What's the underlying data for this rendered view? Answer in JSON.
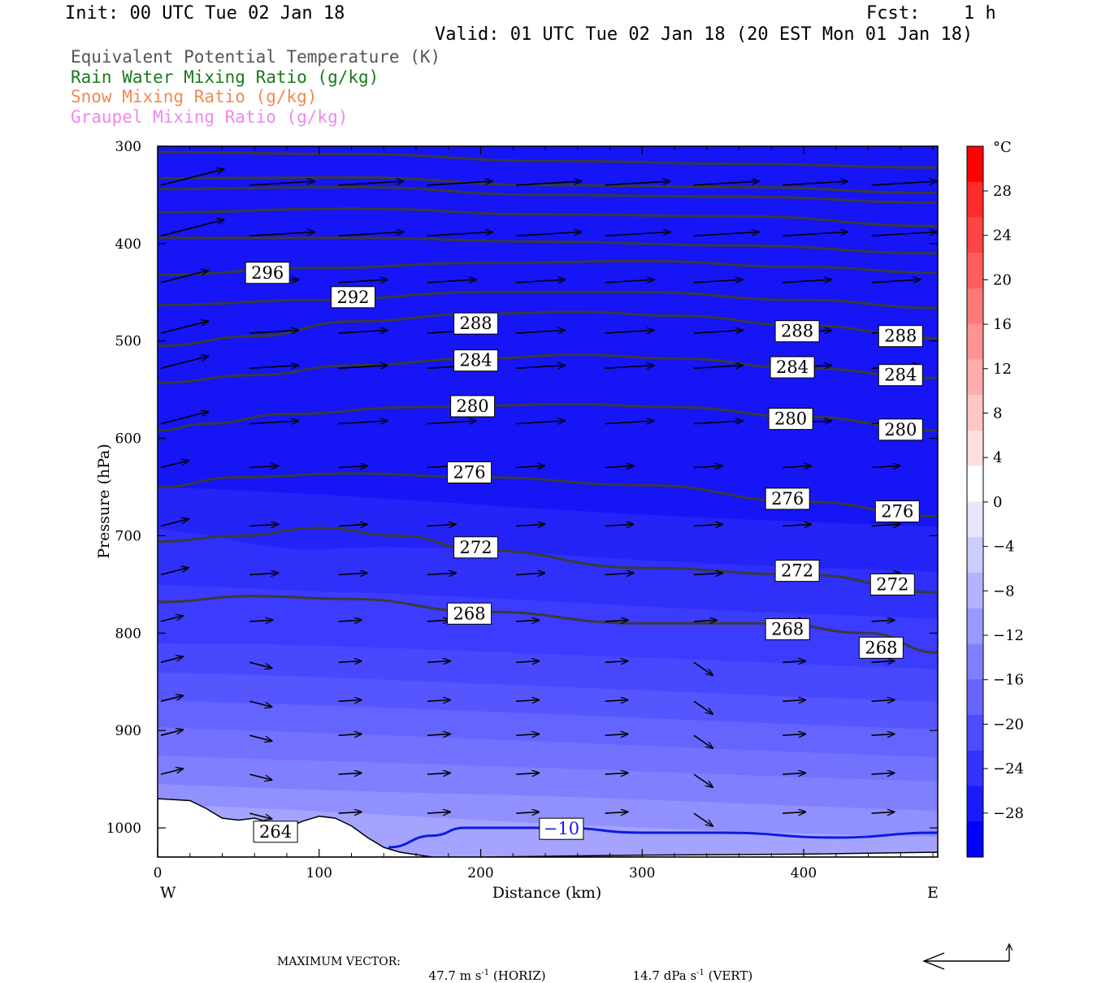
{
  "header": {
    "init": "Init: 00 UTC Tue 02 Jan 18",
    "fcst_label": "Fcst:",
    "fcst_value": "1 h",
    "valid": "Valid: 01 UTC Tue 02 Jan 18 (20 EST Mon 01 Jan 18)",
    "legend_lines": [
      {
        "text": "Equivalent Potential Temperature (K)",
        "color": "#555555"
      },
      {
        "text": "Rain Water Mixing Ratio (g/kg)",
        "color": "#1a7a1a"
      },
      {
        "text": "Snow Mixing Ratio (g/kg)",
        "color": "#f08a50"
      },
      {
        "text": "Graupel Mixing Ratio (g/kg)",
        "color": "#ee88ee"
      }
    ]
  },
  "colorbar": {
    "unit": "°C",
    "labels": [
      "28",
      "24",
      "20",
      "16",
      "12",
      "8",
      "4",
      "0",
      "−4",
      "−8",
      "−12",
      "−16",
      "−20",
      "−24",
      "−28"
    ],
    "colors": [
      "#ff0000",
      "#ff2a2a",
      "#ff4444",
      "#ff5e5e",
      "#ff7878",
      "#ff9292",
      "#ffacac",
      "#ffc6c6",
      "#ffe0e0",
      "#ffffff",
      "#e6e6ff",
      "#ccccff",
      "#b3b3ff",
      "#9999ff",
      "#8080ff",
      "#6666ff",
      "#4d4dff",
      "#3333ff",
      "#1a1aff",
      "#0000ff"
    ]
  },
  "footer": {
    "max_vector_label": "MAXIMUM VECTOR:",
    "horiz_value": "47.7 m s",
    "horiz_suffix": " (HORIZ)",
    "vert_value": "14.7 dPa s",
    "vert_suffix": " (VERT)",
    "exp": "-1"
  },
  "chart_data": {
    "type": "cross-section",
    "xlabel": "Distance (km)",
    "ylabel": "Pressure (hPa)",
    "x_ticks": [
      "0",
      "100",
      "200",
      "300",
      "400"
    ],
    "y_ticks": [
      "300",
      "400",
      "500",
      "600",
      "700",
      "800",
      "900",
      "1000"
    ],
    "left_end": "W",
    "right_end": "E",
    "xlim": [
      0,
      483
    ],
    "ylim": [
      300,
      1030
    ],
    "theta_e_contours": [
      {
        "label": "296",
        "points": [
          [
            0,
            432
          ],
          [
            100,
            425
          ],
          [
            200,
            420
          ],
          [
            300,
            418
          ],
          [
            400,
            424
          ],
          [
            483,
            430
          ]
        ],
        "label_positions": [
          [
            68,
            430
          ]
        ]
      },
      {
        "label": "292",
        "points": [
          [
            0,
            463
          ],
          [
            100,
            458
          ],
          [
            200,
            450
          ],
          [
            300,
            450
          ],
          [
            400,
            458
          ],
          [
            483,
            466
          ]
        ],
        "label_positions": [
          [
            121,
            455
          ]
        ]
      },
      {
        "label": "288",
        "points": [
          [
            0,
            505
          ],
          [
            60,
            495
          ],
          [
            120,
            480
          ],
          [
            200,
            472
          ],
          [
            260,
            470
          ],
          [
            320,
            474
          ],
          [
            400,
            484
          ],
          [
            483,
            497
          ]
        ],
        "label_positions": [
          [
            197,
            482
          ],
          [
            396,
            490
          ],
          [
            460,
            495
          ]
        ]
      },
      {
        "label": "284",
        "points": [
          [
            0,
            543
          ],
          [
            60,
            535
          ],
          [
            120,
            525
          ],
          [
            200,
            518
          ],
          [
            260,
            514
          ],
          [
            320,
            518
          ],
          [
            400,
            528
          ],
          [
            483,
            538
          ]
        ],
        "label_positions": [
          [
            197,
            520
          ],
          [
            393,
            527
          ],
          [
            460,
            535
          ]
        ]
      },
      {
        "label": "280",
        "points": [
          [
            0,
            592
          ],
          [
            30,
            585
          ],
          [
            80,
            575
          ],
          [
            160,
            568
          ],
          [
            260,
            565
          ],
          [
            320,
            568
          ],
          [
            400,
            578
          ],
          [
            483,
            592
          ]
        ],
        "label_positions": [
          [
            195,
            567
          ],
          [
            392,
            580
          ],
          [
            460,
            591
          ]
        ]
      },
      {
        "label": "276",
        "points": [
          [
            0,
            650
          ],
          [
            50,
            640
          ],
          [
            120,
            636
          ],
          [
            200,
            640
          ],
          [
            300,
            648
          ],
          [
            400,
            665
          ],
          [
            483,
            680
          ]
        ],
        "label_positions": [
          [
            193,
            635
          ],
          [
            390,
            662
          ],
          [
            458,
            675
          ]
        ]
      },
      {
        "label": "272",
        "points": [
          [
            0,
            706
          ],
          [
            50,
            700
          ],
          [
            100,
            692
          ],
          [
            150,
            700
          ],
          [
            200,
            715
          ],
          [
            300,
            733
          ],
          [
            400,
            740
          ],
          [
            483,
            758
          ]
        ],
        "label_positions": [
          [
            197,
            712
          ],
          [
            396,
            736
          ],
          [
            455,
            750
          ]
        ]
      },
      {
        "label": "268",
        "points": [
          [
            0,
            768
          ],
          [
            60,
            762
          ],
          [
            120,
            765
          ],
          [
            200,
            778
          ],
          [
            300,
            790
          ],
          [
            380,
            790
          ],
          [
            440,
            800
          ],
          [
            483,
            820
          ]
        ],
        "label_positions": [
          [
            193,
            780
          ],
          [
            390,
            796
          ],
          [
            448,
            815
          ]
        ]
      },
      {
        "label": "264",
        "points": [],
        "label_positions": [
          [
            73,
            1004
          ]
        ]
      }
    ],
    "temperature_contour": {
      "label": "−10",
      "points": [
        [
          143,
          1020
        ],
        [
          170,
          1008
        ],
        [
          190,
          1000
        ],
        [
          250,
          1000
        ],
        [
          300,
          1005
        ],
        [
          350,
          1005
        ],
        [
          420,
          1010
        ],
        [
          483,
          1005
        ]
      ],
      "label_position": [
        250,
        1001
      ]
    },
    "terrain": [
      [
        0,
        970
      ],
      [
        20,
        972
      ],
      [
        30,
        980
      ],
      [
        40,
        990
      ],
      [
        50,
        992
      ],
      [
        60,
        990
      ],
      [
        70,
        995
      ],
      [
        80,
        1000
      ],
      [
        90,
        993
      ],
      [
        100,
        988
      ],
      [
        110,
        990
      ],
      [
        120,
        998
      ],
      [
        130,
        1010
      ],
      [
        140,
        1020
      ],
      [
        150,
        1025
      ],
      [
        170,
        1030
      ],
      [
        200,
        1030
      ],
      [
        300,
        1028
      ],
      [
        400,
        1027
      ],
      [
        483,
        1025
      ]
    ]
  }
}
